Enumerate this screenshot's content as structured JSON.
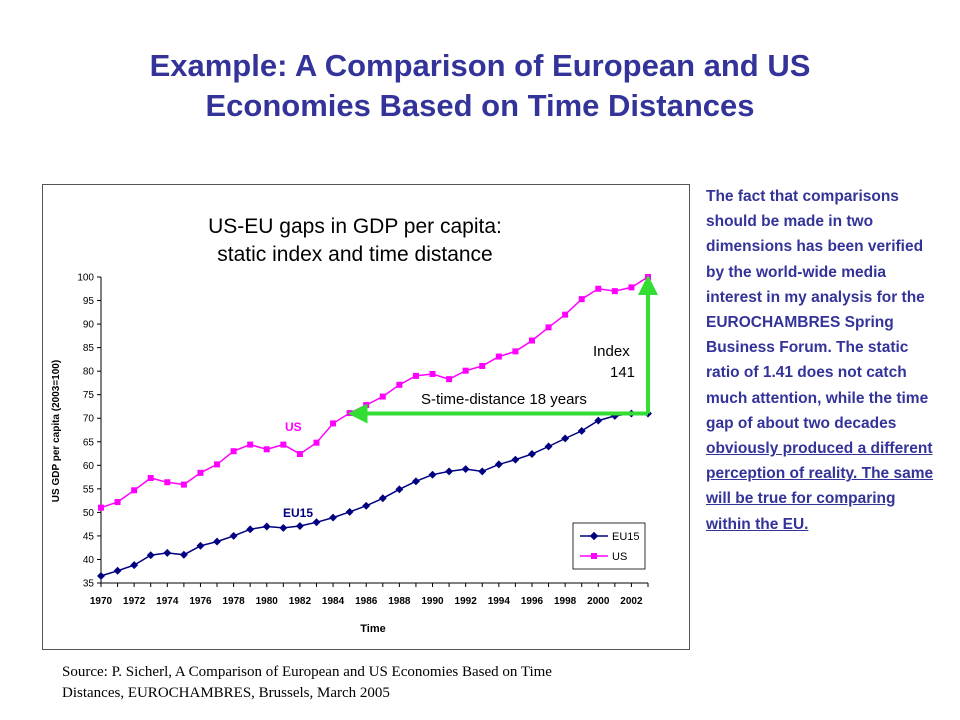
{
  "slide": {
    "title_line1": "Example: A Comparison of European and US",
    "title_line2": "Economies Based on Time Distances",
    "side_text_part1": "The fact that comparisons should be made in two dimensions has been verified by the world-wide media interest in my analysis for the EUROCHAMBRES Spring Business Forum. The static ratio of 1.41 does not catch much attention, while the time gap of about two decades ",
    "side_text_part2": "obviously produced a different perception of reality. The same will be true for comparing within the EU.",
    "source_line1": "Source: P. Sicherl, A Comparison of European and US Economies Based on Time",
    "source_line2": "Distances, EUROCHAMBRES, Brussels, March 2005"
  },
  "colors": {
    "title": "#333399",
    "eu15": "#000080",
    "us": "#ff00ff",
    "arrow": "#33dd33"
  },
  "chart_data": {
    "type": "line",
    "title": "US-EU gaps in GDP per capita: static index and time distance",
    "title_line1": "US-EU gaps in GDP per capita:",
    "title_line2": "static index and time distance",
    "xlabel": "Time",
    "ylabel": "US GDP per capita (2003=100)",
    "ylim": [
      35,
      100
    ],
    "yticks": [
      35,
      40,
      45,
      50,
      55,
      60,
      65,
      70,
      75,
      80,
      85,
      90,
      95,
      100
    ],
    "xlim": [
      1970,
      2003
    ],
    "xticks": [
      1970,
      1972,
      1974,
      1976,
      1978,
      1980,
      1982,
      1984,
      1986,
      1988,
      1990,
      1992,
      1994,
      1996,
      1998,
      2000,
      2002
    ],
    "x": [
      1970,
      1971,
      1972,
      1973,
      1974,
      1975,
      1976,
      1977,
      1978,
      1979,
      1980,
      1981,
      1982,
      1983,
      1984,
      1985,
      1986,
      1987,
      1988,
      1989,
      1990,
      1991,
      1992,
      1993,
      1994,
      1995,
      1996,
      1997,
      1998,
      1999,
      2000,
      2001,
      2002,
      2003
    ],
    "series": [
      {
        "name": "EU15",
        "marker": "diamond",
        "values": [
          36.5,
          37.6,
          38.8,
          40.9,
          41.4,
          41.0,
          42.9,
          43.8,
          45.0,
          46.4,
          47.0,
          46.7,
          47.1,
          47.9,
          48.9,
          50.1,
          51.4,
          53.0,
          54.9,
          56.6,
          58.0,
          58.7,
          59.2,
          58.7,
          60.2,
          61.2,
          62.4,
          64.0,
          65.7,
          67.3,
          69.5,
          70.5,
          71.0,
          71.0
        ]
      },
      {
        "name": "US",
        "marker": "square",
        "values": [
          51.0,
          52.2,
          54.7,
          57.3,
          56.4,
          55.9,
          58.4,
          60.2,
          63.0,
          64.4,
          63.4,
          64.4,
          62.4,
          64.8,
          68.9,
          71.1,
          72.8,
          74.6,
          77.1,
          79.0,
          79.4,
          78.3,
          80.1,
          81.1,
          83.1,
          84.2,
          86.5,
          89.3,
          92.0,
          95.3,
          97.5,
          97.0,
          97.8,
          100.0
        ]
      }
    ],
    "legend_position": "bottom-right",
    "annotations": {
      "us_label": "US",
      "eu_label": "EU15",
      "time_distance_label": "S-time-distance 18 years",
      "index_line1": "Index",
      "index_line2": "141"
    }
  }
}
